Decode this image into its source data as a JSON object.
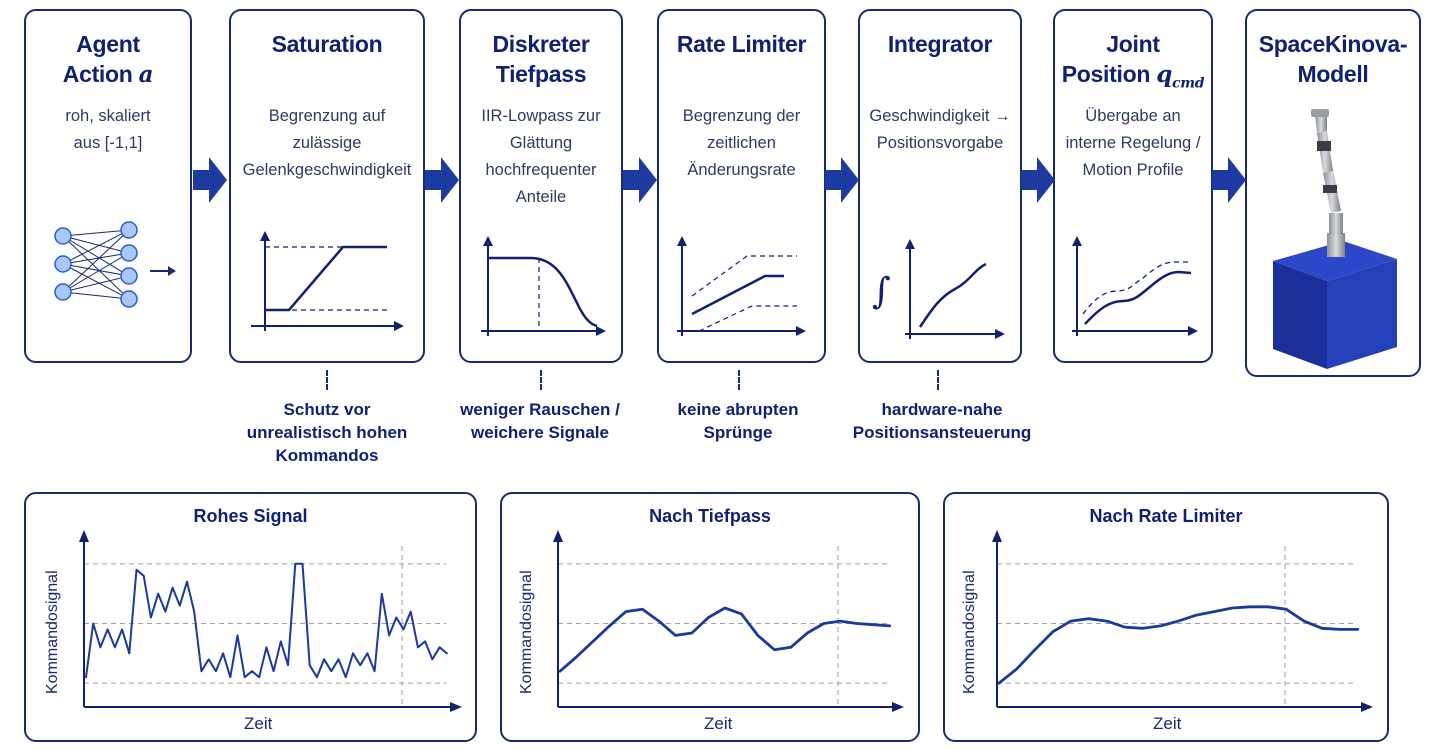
{
  "stages": [
    {
      "id": "agent",
      "title": [
        "Agent",
        "Action "
      ],
      "math": "a",
      "desc": [
        "roh, skaliert",
        "aus [-1,1]"
      ],
      "icon": "neural-network-icon"
    },
    {
      "id": "saturation",
      "title": [
        "Saturation"
      ],
      "desc": [
        "Begrenzung auf",
        "zulässige",
        "Gelenkgeschwindigkeit"
      ],
      "icon": "saturation-curve-icon"
    },
    {
      "id": "tiefpass",
      "title": [
        "Diskreter",
        "Tiefpass"
      ],
      "desc": [
        "IIR-Lowpass zur",
        "Glättung",
        "hochfrequenter",
        "Anteile"
      ],
      "icon": "lowpass-curve-icon"
    },
    {
      "id": "ratelimiter",
      "title": [
        "Rate Limiter"
      ],
      "desc": [
        "Begrenzung der",
        "zeitlichen",
        "Änderungsrate"
      ],
      "icon": "rate-limit-curve-icon"
    },
    {
      "id": "integrator",
      "title": [
        "Integrator"
      ],
      "desc": [
        "Geschwindigkeit →",
        "Positionsvorgabe"
      ],
      "icon": "integral-curve-icon"
    },
    {
      "id": "joint",
      "title": [
        "Joint",
        "Position "
      ],
      "math": "q",
      "math_sub": "cmd",
      "desc": [
        "Übergabe an",
        "interne Regelung /",
        "Motion Profile"
      ],
      "icon": "position-curve-icon"
    },
    {
      "id": "model",
      "title": [
        "SpaceKinova-",
        "Modell"
      ],
      "desc": [],
      "icon": "robot-arm-icon"
    }
  ],
  "notes": [
    {
      "stage": "saturation",
      "lines": [
        "Schutz vor",
        "unrealistisch hohen",
        "Kommandos"
      ]
    },
    {
      "stage": "tiefpass",
      "lines": [
        "weniger Rauschen /",
        "weichere Signale"
      ]
    },
    {
      "stage": "ratelimiter",
      "lines": [
        "keine abrupten",
        "Sprünge"
      ]
    },
    {
      "stage": "integrator",
      "lines": [
        "hardware-nahe",
        "Positionsansteuerung"
      ]
    }
  ],
  "colors": {
    "primary": "#0f2170",
    "line": "#1a3a9c",
    "node_fill": "#a9c8f5",
    "node_stroke": "#2a5bd7",
    "cube": "#1d36a8"
  },
  "chart_data": [
    {
      "type": "line",
      "title": "Rohes Signal",
      "xlabel": "Zeit",
      "ylabel": "Kommandosignal",
      "x": [
        0,
        1,
        2,
        3,
        4,
        5,
        6,
        7,
        8,
        9,
        10,
        11,
        12,
        13,
        14,
        15,
        16,
        17,
        18,
        19,
        20,
        21,
        22,
        23,
        24,
        25,
        26,
        27,
        28,
        29,
        30,
        31,
        32,
        33,
        34,
        35,
        36,
        37,
        38,
        39,
        40,
        41,
        42,
        43,
        44,
        45,
        46,
        47,
        48,
        49,
        50
      ],
      "values": [
        0.05,
        0.5,
        0.3,
        0.45,
        0.3,
        0.45,
        0.25,
        0.95,
        0.9,
        0.55,
        0.75,
        0.6,
        0.8,
        0.65,
        0.85,
        0.6,
        0.1,
        0.2,
        0.1,
        0.25,
        0.05,
        0.4,
        0.05,
        0.1,
        0.05,
        0.3,
        0.1,
        0.35,
        0.15,
        1.0,
        1.0,
        0.15,
        0.05,
        0.2,
        0.1,
        0.2,
        0.05,
        0.25,
        0.15,
        0.25,
        0.1,
        0.75,
        0.4,
        0.55,
        0.45,
        0.6,
        0.3,
        0.35,
        0.2,
        0.3,
        0.25
      ],
      "ylim": [
        -0.2,
        1.25
      ]
    },
    {
      "type": "line",
      "title": "Nach Tiefpass",
      "xlabel": "Zeit",
      "ylabel": "Kommandosignal",
      "x": [
        0,
        1,
        2,
        3,
        4,
        5,
        6,
        7,
        8,
        9,
        10,
        11,
        12,
        13,
        14,
        15,
        16,
        17,
        18,
        19,
        20
      ],
      "values": [
        0.1,
        0.22,
        0.35,
        0.48,
        0.6,
        0.62,
        0.52,
        0.4,
        0.42,
        0.55,
        0.63,
        0.58,
        0.4,
        0.28,
        0.3,
        0.42,
        0.5,
        0.52,
        0.5,
        0.49,
        0.48
      ],
      "ylim": [
        -0.2,
        1.25
      ]
    },
    {
      "type": "line",
      "title": "Nach Rate Limiter",
      "xlabel": "Zeit",
      "ylabel": "Kommandosignal",
      "x": [
        0,
        1,
        2,
        3,
        4,
        5,
        6,
        7,
        8,
        9,
        10,
        11,
        12,
        13,
        14,
        15,
        16,
        17,
        18,
        19,
        20
      ],
      "values": [
        0.0,
        0.12,
        0.28,
        0.43,
        0.52,
        0.54,
        0.52,
        0.47,
        0.46,
        0.48,
        0.52,
        0.57,
        0.6,
        0.63,
        0.64,
        0.64,
        0.62,
        0.52,
        0.46,
        0.45,
        0.45
      ],
      "ylim": [
        -0.2,
        1.25
      ]
    }
  ]
}
